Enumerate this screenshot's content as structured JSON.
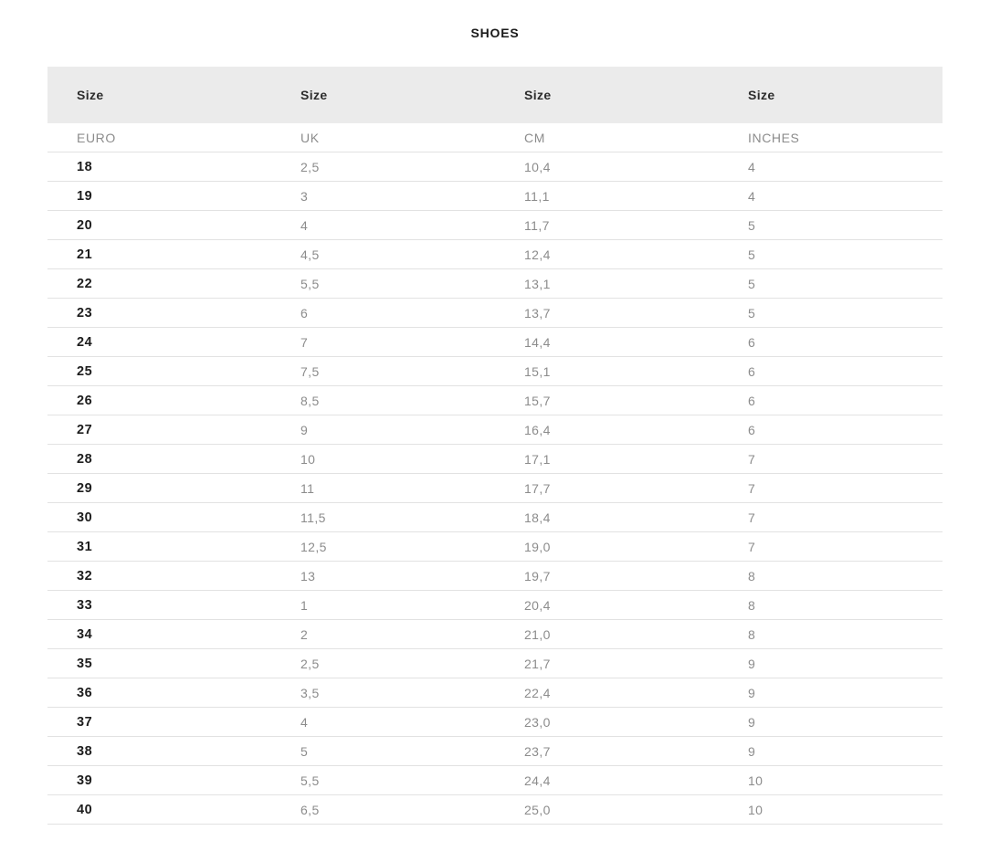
{
  "title": "SHOES",
  "colors": {
    "header_background": "#ebebeb",
    "dark_text": "#1d1d1d",
    "gray_text": "#8c8c8c",
    "row_border": "#e2e2e2"
  },
  "table": {
    "columns": [
      {
        "group_label": "Size",
        "unit_label": "EURO"
      },
      {
        "group_label": "Size",
        "unit_label": "UK"
      },
      {
        "group_label": "Size",
        "unit_label": "CM"
      },
      {
        "group_label": "Size",
        "unit_label": "INCHES"
      }
    ],
    "rows": [
      [
        "18",
        "2,5",
        "10,4",
        "4"
      ],
      [
        "19",
        "3",
        "11,1",
        "4"
      ],
      [
        "20",
        "4",
        "11,7",
        "5"
      ],
      [
        "21",
        "4,5",
        "12,4",
        "5"
      ],
      [
        "22",
        "5,5",
        "13,1",
        "5"
      ],
      [
        "23",
        "6",
        "13,7",
        "5"
      ],
      [
        "24",
        "7",
        "14,4",
        "6"
      ],
      [
        "25",
        "7,5",
        "15,1",
        "6"
      ],
      [
        "26",
        "8,5",
        "15,7",
        "6"
      ],
      [
        "27",
        "9",
        "16,4",
        "6"
      ],
      [
        "28",
        "10",
        "17,1",
        "7"
      ],
      [
        "29",
        "11",
        "17,7",
        "7"
      ],
      [
        "30",
        "11,5",
        "18,4",
        "7"
      ],
      [
        "31",
        "12,5",
        "19,0",
        "7"
      ],
      [
        "32",
        "13",
        "19,7",
        "8"
      ],
      [
        "33",
        "1",
        "20,4",
        "8"
      ],
      [
        "34",
        "2",
        "21,0",
        "8"
      ],
      [
        "35",
        "2,5",
        "21,7",
        "9"
      ],
      [
        "36",
        "3,5",
        "22,4",
        "9"
      ],
      [
        "37",
        "4",
        "23,0",
        "9"
      ],
      [
        "38",
        "5",
        "23,7",
        "9"
      ],
      [
        "39",
        "5,5",
        "24,4",
        "10"
      ],
      [
        "40",
        "6,5",
        "25,0",
        "10"
      ]
    ]
  }
}
